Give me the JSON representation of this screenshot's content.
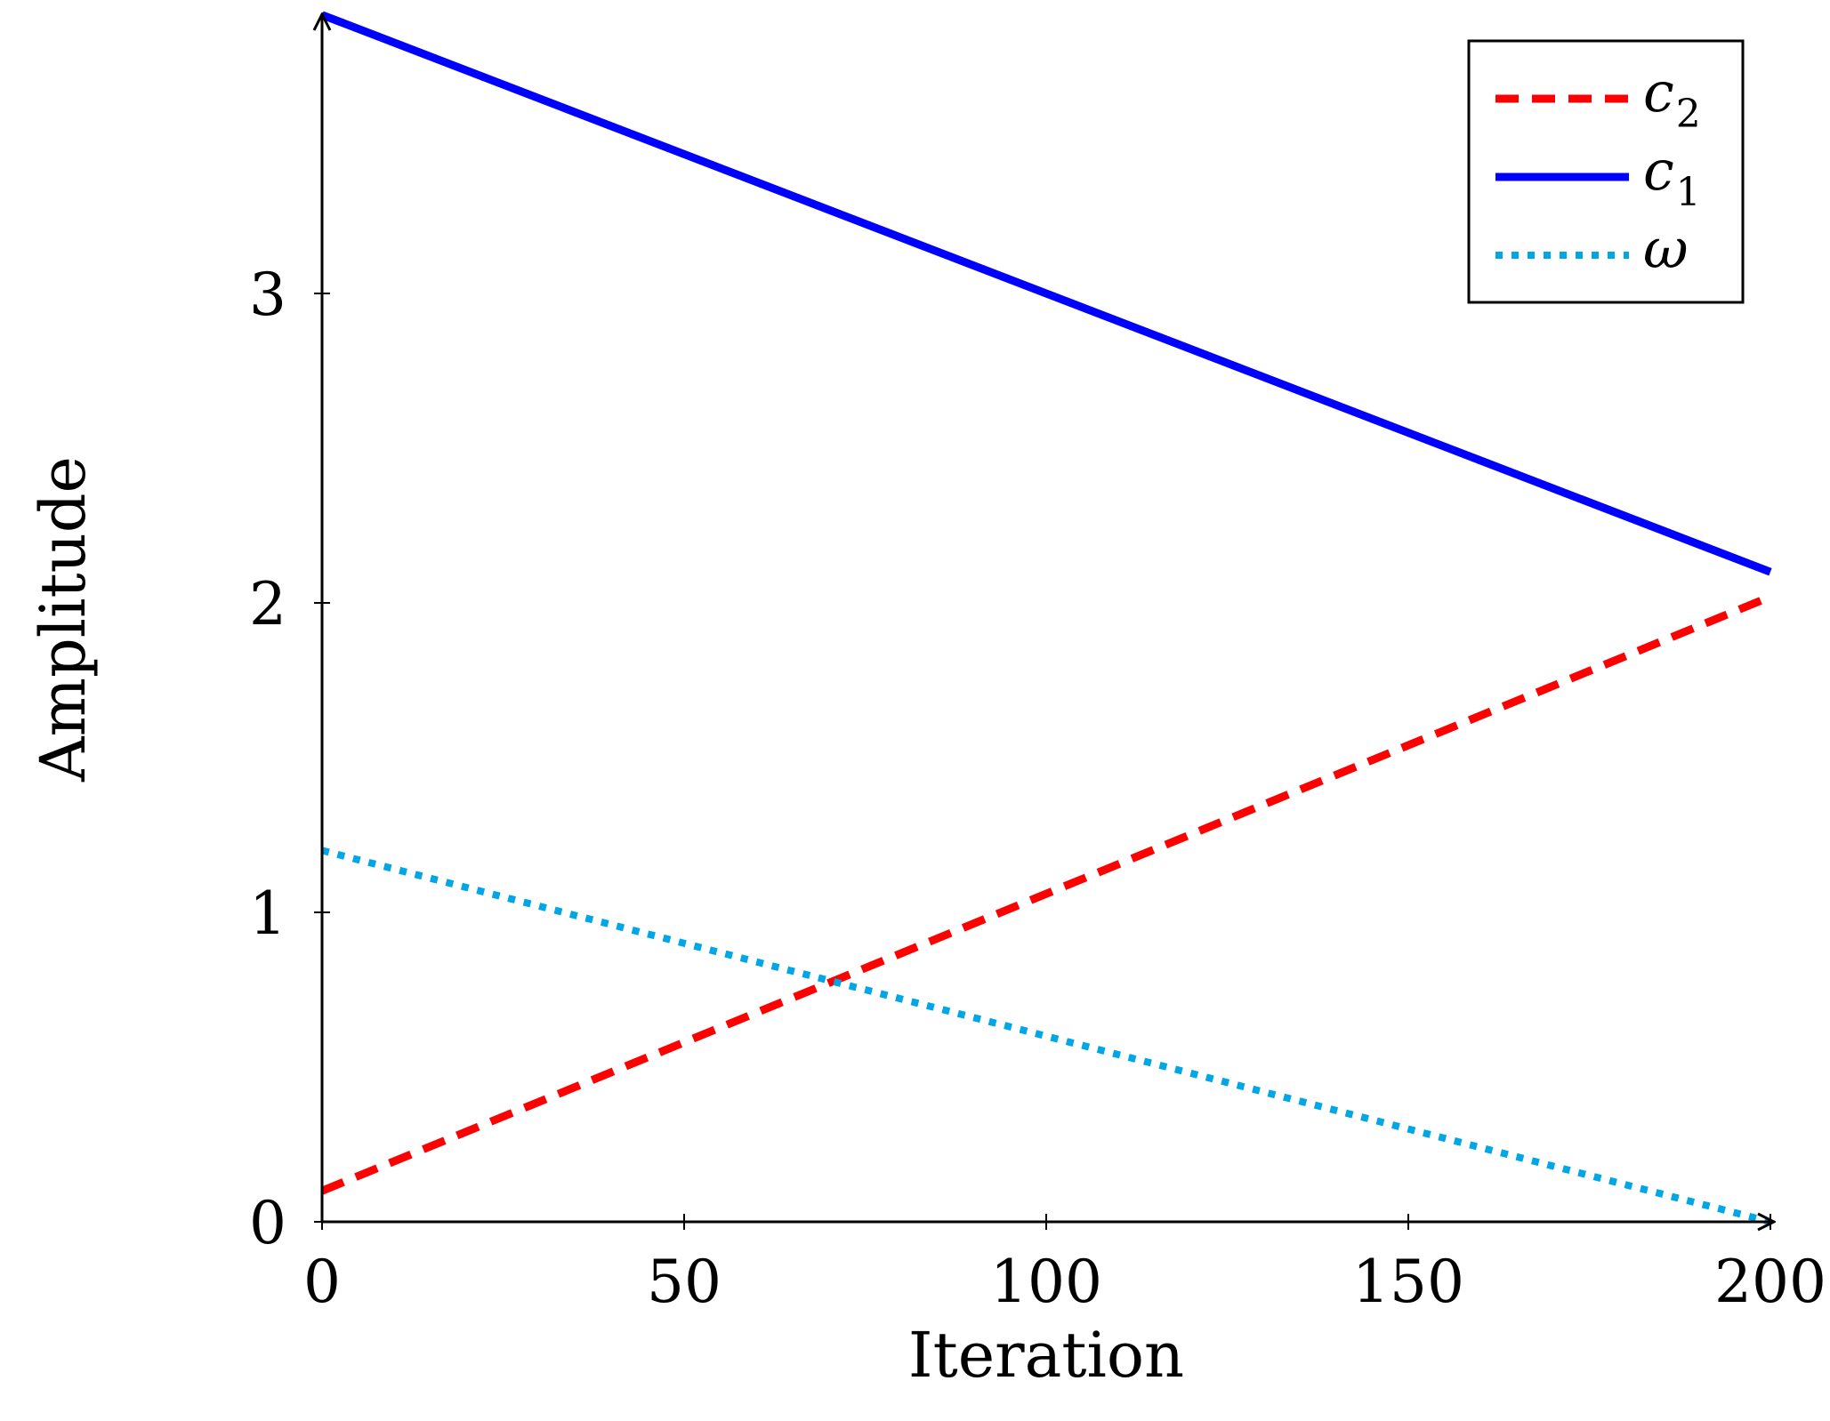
{
  "chart_data": {
    "type": "line",
    "title": "",
    "xlabel": "Iteration",
    "ylabel": "Amplitude",
    "xlim": [
      0,
      200
    ],
    "ylim": [
      0,
      3.9
    ],
    "xticks": [
      0,
      50,
      100,
      150,
      200
    ],
    "yticks": [
      0,
      1,
      2,
      3
    ],
    "xtick_labels": [
      "0",
      "50",
      "100",
      "150",
      "200"
    ],
    "ytick_labels": [
      "0",
      "1",
      "2",
      "3"
    ],
    "grid": false,
    "legend_position": "top-right",
    "series": [
      {
        "name": "c2",
        "label_base": "c",
        "label_sub": "2",
        "style": "dashed",
        "color": "#ff0000",
        "x": [
          0,
          200
        ],
        "y": [
          0.1,
          2.02
        ]
      },
      {
        "name": "c1",
        "label_base": "c",
        "label_sub": "1",
        "style": "solid",
        "color": "#0000ff",
        "x": [
          0,
          200
        ],
        "y": [
          3.9,
          2.1
        ]
      },
      {
        "name": "ω",
        "label_base": "ω",
        "label_sub": "",
        "style": "dotted",
        "color": "#00a6e6",
        "x": [
          0,
          200
        ],
        "y": [
          1.2,
          0.0
        ]
      }
    ]
  }
}
